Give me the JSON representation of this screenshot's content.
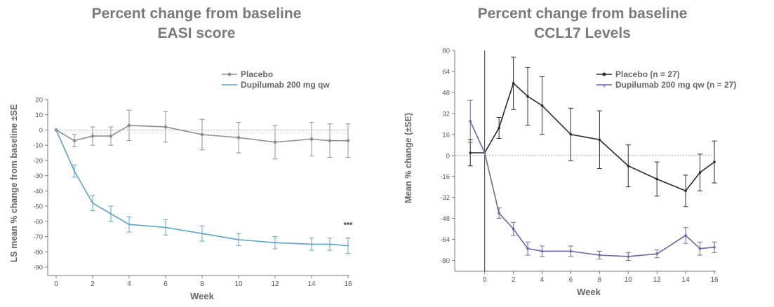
{
  "chart_data": [
    {
      "type": "line",
      "title": "Percent change from baseline",
      "subtitle": "EASI score",
      "xlabel": "Week",
      "ylabel": "LS mean % change from baseline ±SE",
      "xlim": [
        0,
        16
      ],
      "ylim": [
        -90,
        20
      ],
      "xticks": [
        0,
        2,
        4,
        6,
        8,
        10,
        12,
        14,
        16
      ],
      "yticks": [
        20,
        10,
        0,
        -10,
        -20,
        -30,
        -40,
        -50,
        -60,
        -70,
        -80,
        -90
      ],
      "reference_line": 0,
      "legend_position": "top-right",
      "annotation": "***",
      "series": [
        {
          "name": "Placebo",
          "color": "#909090",
          "marker": "circle",
          "x": [
            0,
            1,
            2,
            3,
            4,
            6,
            8,
            10,
            12,
            14,
            15,
            16
          ],
          "y": [
            0,
            -7,
            -4,
            -4,
            3,
            2,
            -3,
            -5,
            -8,
            -6,
            -7,
            -7
          ],
          "err": [
            0,
            4,
            6,
            6,
            10,
            10,
            10,
            10,
            11,
            11,
            11,
            11
          ]
        },
        {
          "name": "Dupilumab 200 mg qw",
          "color": "#5ba4c8",
          "marker": "none",
          "x": [
            0,
            1,
            2,
            3,
            4,
            6,
            8,
            10,
            12,
            14,
            15,
            16
          ],
          "y": [
            0,
            -27,
            -48,
            -55,
            -62,
            -64,
            -68,
            -72,
            -74,
            -75,
            -75,
            -76
          ],
          "err": [
            0,
            4,
            5,
            5,
            5,
            5,
            5,
            4,
            4,
            4,
            4,
            5
          ]
        }
      ]
    },
    {
      "type": "line",
      "title": "Percent change from baseline",
      "subtitle": "CCL17 Levels",
      "xlabel": "Week",
      "ylabel": "Mean % change (±SE)",
      "xlim": [
        -1.5,
        16
      ],
      "ylim": [
        -84,
        80
      ],
      "xticks": [
        0,
        2,
        4,
        6,
        8,
        10,
        12,
        14,
        16
      ],
      "yticks": [
        80,
        64,
        48,
        32,
        16,
        0,
        -16,
        -32,
        -48,
        -64,
        -80
      ],
      "reference_line": 0,
      "legend_position": "top-right",
      "series": [
        {
          "name": "Placebo (n = 27)",
          "color": "#2a2a2a",
          "marker": "dot",
          "x": [
            -1,
            0,
            1,
            2,
            3,
            4,
            6,
            8,
            10,
            12,
            14,
            15,
            16
          ],
          "y": [
            2,
            2,
            21,
            55,
            45,
            38,
            16,
            12,
            -8,
            -18,
            -27,
            -13,
            -5
          ],
          "err": [
            10,
            0,
            8,
            20,
            22,
            22,
            20,
            22,
            16,
            13,
            12,
            14,
            16
          ]
        },
        {
          "name": "Dupilumab 200 mg qw (n = 27)",
          "color": "#7063a8",
          "marker": "star",
          "x": [
            -1,
            0,
            1,
            2,
            3,
            4,
            6,
            8,
            10,
            12,
            14,
            15,
            16
          ],
          "y": [
            26,
            2,
            -44,
            -56,
            -71,
            -73,
            -73,
            -76,
            -77,
            -75,
            -61,
            -71,
            -70
          ],
          "err": [
            16,
            0,
            4,
            5,
            5,
            4,
            4,
            3,
            3,
            3,
            6,
            5,
            4
          ]
        }
      ]
    }
  ]
}
